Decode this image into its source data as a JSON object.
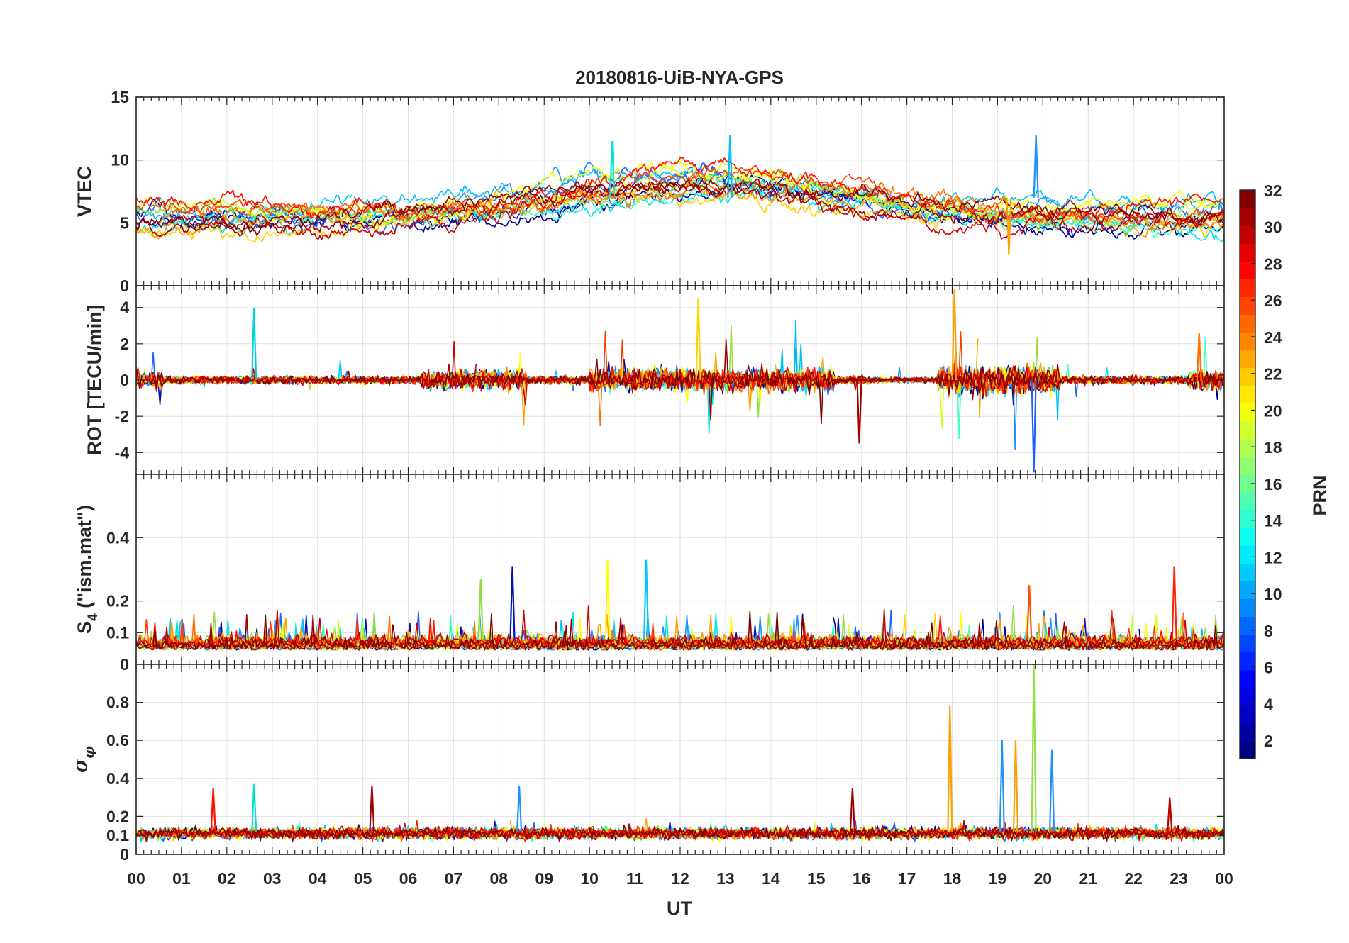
{
  "chart_data": {
    "type": "line",
    "title": "20180816-UiB-NYA-GPS",
    "xlabel": "UT",
    "x_range_hours": [
      0,
      24
    ],
    "x_tick_labels": [
      "00",
      "01",
      "02",
      "03",
      "04",
      "05",
      "06",
      "07",
      "08",
      "09",
      "10",
      "11",
      "12",
      "13",
      "14",
      "15",
      "16",
      "17",
      "18",
      "19",
      "20",
      "21",
      "22",
      "23",
      "00"
    ],
    "colorbar": {
      "label": "PRN",
      "range": [
        1,
        32
      ],
      "tick_labels": [
        "2",
        "4",
        "6",
        "8",
        "10",
        "12",
        "14",
        "16",
        "18",
        "20",
        "22",
        "24",
        "26",
        "28",
        "30",
        "32"
      ],
      "colormap": "jet"
    },
    "panels": [
      {
        "name": "vtec",
        "ylabel": "VTEC",
        "ylim": [
          0,
          15
        ],
        "ytick_values": [
          0,
          5,
          10,
          15
        ],
        "ytick_labels": [
          "0",
          "5",
          "10",
          "15"
        ],
        "typical_values": "5-9 TECU, peak near 12 around 10-13 UT and 20 UT",
        "events": [
          {
            "hour": 19.85,
            "value": 12,
            "color": "#1e90ff"
          },
          {
            "hour": 13.1,
            "value": 12,
            "color": "#00bfff"
          },
          {
            "hour": 10.5,
            "value": 11.5,
            "color": "#00e5e5"
          },
          {
            "hour": 19.25,
            "value": 2.5,
            "color": "#ffa000"
          }
        ]
      },
      {
        "name": "rot",
        "ylabel": "ROT [TECU/min]",
        "ylim": [
          -5.2,
          5.2
        ],
        "ytick_values": [
          -4,
          -2,
          0,
          2,
          4
        ],
        "ytick_labels": [
          "-4",
          "-2",
          "0",
          "2",
          "4"
        ],
        "typical_values": "fluctuations within +/-1, bursts to +/-4 around 12-15 UT and 18-20 UT",
        "events": [
          {
            "hour": 18.05,
            "value": 5,
            "color": "#ffa000"
          },
          {
            "hour": 19.8,
            "value": -5.1,
            "color": "#1e5fff"
          },
          {
            "hour": 12.4,
            "value": 4.5,
            "color": "#ffd200"
          },
          {
            "hour": 2.6,
            "value": 4,
            "color": "#00d0e0"
          },
          {
            "hour": 15.95,
            "value": -3.5,
            "color": "#a00000"
          },
          {
            "hour": 23.45,
            "value": 2.6,
            "color": "#ff7000"
          }
        ]
      },
      {
        "name": "s4",
        "ylabel": "S4 (\"ism.mat\")",
        "ylabel_main": "S",
        "ylabel_sub": "4",
        "ylabel_rest": " (\"ism.mat\")",
        "ylim": [
          0,
          0.6
        ],
        "ytick_values": [
          0,
          0.1,
          0.2,
          0.4
        ],
        "ytick_labels": [
          "0",
          "0.1",
          "0.2",
          "0.4"
        ],
        "typical_values": "baseline 0.03-0.08, peaks to about 0.3",
        "events": [
          {
            "hour": 10.4,
            "value": 0.33,
            "color": "#ffff00"
          },
          {
            "hour": 11.25,
            "value": 0.33,
            "color": "#00c8ff"
          },
          {
            "hour": 8.3,
            "value": 0.31,
            "color": "#0010c0"
          },
          {
            "hour": 22.9,
            "value": 0.31,
            "color": "#ff1e00"
          },
          {
            "hour": 7.6,
            "value": 0.27,
            "color": "#90e040"
          },
          {
            "hour": 19.7,
            "value": 0.25,
            "color": "#ff5000"
          }
        ]
      },
      {
        "name": "sigma",
        "ylabel": "sigma_phi",
        "ylabel_glyph": "σ",
        "ylabel_sub": "φ",
        "ylim": [
          0,
          1
        ],
        "ytick_values": [
          0,
          0.1,
          0.2,
          0.4,
          0.6,
          0.8
        ],
        "ytick_labels": [
          "0",
          "0.1",
          "0.2",
          "0.4",
          "0.6",
          "0.8"
        ],
        "typical_values": "baseline about 0.1, spikes near 18-20 UT",
        "events": [
          {
            "hour": 19.8,
            "value": 1.0,
            "color": "#90e040"
          },
          {
            "hour": 17.95,
            "value": 0.78,
            "color": "#ffa000"
          },
          {
            "hour": 19.1,
            "value": 0.6,
            "color": "#1e90ff"
          },
          {
            "hour": 19.4,
            "value": 0.6,
            "color": "#ffa000"
          },
          {
            "hour": 20.2,
            "value": 0.55,
            "color": "#1e90ff"
          },
          {
            "hour": 2.6,
            "value": 0.37,
            "color": "#00e0d0"
          },
          {
            "hour": 1.7,
            "value": 0.35,
            "color": "#ff1000"
          },
          {
            "hour": 5.2,
            "value": 0.36,
            "color": "#a00000"
          },
          {
            "hour": 8.45,
            "value": 0.36,
            "color": "#1e90ff"
          },
          {
            "hour": 15.8,
            "value": 0.35,
            "color": "#a00000"
          },
          {
            "hour": 22.8,
            "value": 0.3,
            "color": "#c00000"
          }
        ]
      }
    ],
    "series_colors": [
      "#00008f",
      "#0010c0",
      "#1e5fff",
      "#1e90ff",
      "#00bfff",
      "#00e5e5",
      "#40ffbf",
      "#90e040",
      "#d5ff2a",
      "#ffff00",
      "#ffd200",
      "#ffa000",
      "#ff7000",
      "#ff3c00",
      "#ff1000",
      "#d00000",
      "#a00000",
      "#7f0000"
    ]
  }
}
